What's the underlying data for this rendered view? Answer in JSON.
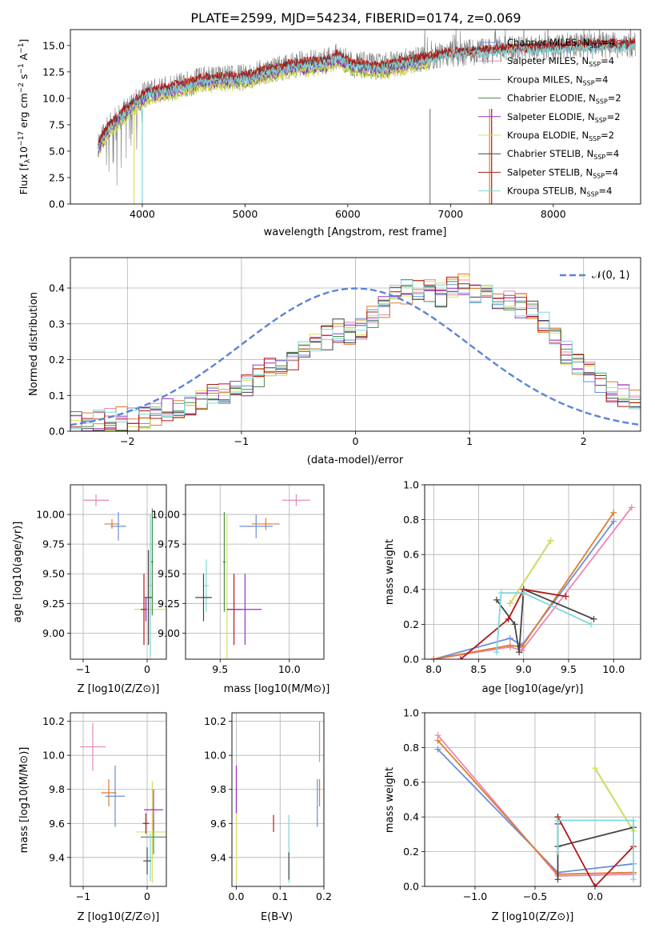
{
  "figure_title": "PLATE=2599, MJD=54234, FIBERID=0174, z=0.069",
  "colors": {
    "chabrier_miles": "#6a8fd8",
    "salpeter_miles": "#e887b8",
    "kroupa_miles": "#e07b2a",
    "chabrier_elodie": "#4a8a4a",
    "salpeter_elodie": "#9b30c8",
    "kroupa_elodie": "#d8e05a",
    "chabrier_stelib": "#454545",
    "salpeter_stelib": "#b01818",
    "kroupa_stelib": "#7ed8d8",
    "data": "#808080",
    "gaussian": "#5b84d6"
  },
  "chart_data": [
    {
      "type": "line",
      "title": "PLATE=2599, MJD=54234, FIBERID=0174, z=0.069",
      "xlabel": "wavelength [Angstrom, rest frame]",
      "ylabel": "Flux [f_λ 10^-17 erg cm^-2 s^-1 A^-1]",
      "xlim": [
        3300,
        8850
      ],
      "ylim": [
        0,
        16.5
      ],
      "xticks": [
        4000,
        5000,
        6000,
        7000,
        8000
      ],
      "yticks": [
        "0.0",
        "2.5",
        "5.0",
        "7.5",
        "10.0",
        "12.5",
        "15.0"
      ],
      "legend": {
        "position": "right",
        "entries": [
          {
            "label": "Chabrier MILES, N",
            "sub": "SSP",
            "tail": "=4",
            "color": "chabrier_miles"
          },
          {
            "label": "Salpeter MILES, N",
            "sub": "SSP",
            "tail": "=4",
            "color": "salpeter_miles"
          },
          {
            "label": "Kroupa MILES, N",
            "sub": "SSP",
            "tail": "=4",
            "color": "kroupa_miles"
          },
          {
            "label": "Chabrier ELODIE, N",
            "sub": "SSP",
            "tail": "=2",
            "color": "chabrier_elodie"
          },
          {
            "label": "Salpeter ELODIE, N",
            "sub": "SSP",
            "tail": "=2",
            "color": "salpeter_elodie"
          },
          {
            "label": "Kroupa ELODIE, N",
            "sub": "SSP",
            "tail": "=2",
            "color": "kroupa_elodie"
          },
          {
            "label": "Chabrier STELIB, N",
            "sub": "SSP",
            "tail": "=4",
            "color": "chabrier_stelib"
          },
          {
            "label": "Salpeter STELIB, N",
            "sub": "SSP",
            "tail": "=4",
            "color": "salpeter_stelib"
          },
          {
            "label": "Kroupa STELIB, N",
            "sub": "SSP",
            "tail": "=4",
            "color": "kroupa_stelib"
          }
        ]
      },
      "continuum": [
        [
          3570,
          5.5
        ],
        [
          3650,
          7.0
        ],
        [
          3800,
          8.5
        ],
        [
          3950,
          9.8
        ],
        [
          4050,
          10.5
        ],
        [
          4300,
          11.0
        ],
        [
          4600,
          11.8
        ],
        [
          5000,
          12.0
        ],
        [
          5200,
          12.6
        ],
        [
          5500,
          13.2
        ],
        [
          5800,
          13.5
        ],
        [
          5900,
          14.0
        ],
        [
          6050,
          13.2
        ],
        [
          6300,
          13.0
        ],
        [
          6600,
          13.5
        ],
        [
          7000,
          14.2
        ],
        [
          7500,
          14.6
        ],
        [
          8000,
          14.8
        ],
        [
          8500,
          15.0
        ],
        [
          8800,
          15.0
        ]
      ]
    },
    {
      "type": "line",
      "xlabel": "(data-model)/error",
      "ylabel": "Normed distribution",
      "xlim": [
        -2.5,
        2.5
      ],
      "ylim": [
        0,
        0.485
      ],
      "xticks": [
        "−2",
        "−1",
        "0",
        "1",
        "2"
      ],
      "yticks": [
        "0.0",
        "0.1",
        "0.2",
        "0.3",
        "0.4"
      ],
      "legend_label": "𝒩(0, 1)",
      "hist_edges_start": -2.5,
      "hist_bin_width": 0.1,
      "hist_base": [
        0.02,
        0.02,
        0.025,
        0.03,
        0.035,
        0.03,
        0.04,
        0.05,
        0.06,
        0.07,
        0.08,
        0.09,
        0.1,
        0.11,
        0.12,
        0.13,
        0.15,
        0.17,
        0.19,
        0.2,
        0.22,
        0.24,
        0.26,
        0.28,
        0.27,
        0.29,
        0.32,
        0.35,
        0.38,
        0.39,
        0.4,
        0.39,
        0.38,
        0.4,
        0.41,
        0.39,
        0.38,
        0.37,
        0.36,
        0.35,
        0.34,
        0.3,
        0.26,
        0.22,
        0.19,
        0.16,
        0.13,
        0.11,
        0.1,
        0.09
      ]
    },
    {
      "type": "scatter",
      "xlabel": "Z [log10(Z/Z⊙)]",
      "ylabel": "age [log10(age/yr)]",
      "xlim": [
        -1.2,
        0.3
      ],
      "ylim": [
        8.78,
        10.25
      ],
      "xticks": [
        "−1",
        "0"
      ],
      "yticks": [
        "9.00",
        "9.25",
        "9.50",
        "9.75",
        "10.00"
      ],
      "points": [
        {
          "x": -0.8,
          "y": 10.12,
          "xe": 0.2,
          "ye": 0.05,
          "c": "salpeter_miles"
        },
        {
          "x": -0.55,
          "y": 9.92,
          "xe": 0.12,
          "ye": 0.04,
          "c": "kroupa_miles"
        },
        {
          "x": -0.45,
          "y": 9.9,
          "xe": 0.12,
          "ye": 0.12,
          "c": "chabrier_miles"
        },
        {
          "x": 0.05,
          "y": 9.2,
          "xe": 0.25,
          "ye": 0.8,
          "c": "kroupa_elodie"
        },
        {
          "x": 0.08,
          "y": 9.6,
          "xe": 0.02,
          "ye": 0.45,
          "c": "chabrier_elodie"
        },
        {
          "x": 0.05,
          "y": 9.4,
          "xe": 0.02,
          "ye": 0.6,
          "c": "kroupa_stelib"
        },
        {
          "x": 0.02,
          "y": 9.3,
          "xe": 0.06,
          "ye": 0.4,
          "c": "chabrier_stelib"
        },
        {
          "x": -0.05,
          "y": 9.2,
          "xe": 0.05,
          "ye": 0.3,
          "c": "salpeter_stelib"
        },
        {
          "x": -0.02,
          "y": 9.2,
          "xe": 0.02,
          "ye": 0.1,
          "c": "salpeter_elodie"
        }
      ]
    },
    {
      "type": "scatter",
      "xlabel": "mass [log10(M/M⊙)]",
      "ylabel": "",
      "xlim": [
        9.25,
        10.25
      ],
      "ylim": [
        8.78,
        10.25
      ],
      "xticks": [
        "9.5",
        "10.0"
      ],
      "yticks": [
        "9.00",
        "9.25",
        "9.50",
        "9.75",
        "10.00"
      ],
      "points": [
        {
          "x": 10.05,
          "y": 10.12,
          "xe": 0.1,
          "ye": 0.05,
          "c": "salpeter_miles"
        },
        {
          "x": 9.83,
          "y": 9.92,
          "xe": 0.1,
          "ye": 0.05,
          "c": "kroupa_miles"
        },
        {
          "x": 9.76,
          "y": 9.9,
          "xe": 0.12,
          "ye": 0.1,
          "c": "chabrier_miles"
        },
        {
          "x": 9.55,
          "y": 9.2,
          "xe": 0.02,
          "ye": 0.8,
          "c": "kroupa_elodie"
        },
        {
          "x": 9.53,
          "y": 9.6,
          "xe": 0.01,
          "ye": 0.42,
          "c": "chabrier_elodie"
        },
        {
          "x": 9.4,
          "y": 9.4,
          "xe": 0.02,
          "ye": 0.22,
          "c": "kroupa_stelib"
        },
        {
          "x": 9.38,
          "y": 9.3,
          "xe": 0.06,
          "ye": 0.2,
          "c": "chabrier_stelib"
        },
        {
          "x": 9.6,
          "y": 9.2,
          "xe": 0.05,
          "ye": 0.3,
          "c": "salpeter_stelib"
        },
        {
          "x": 9.68,
          "y": 9.2,
          "xe": 0.12,
          "ye": 0.3,
          "c": "salpeter_elodie"
        }
      ]
    },
    {
      "type": "line",
      "xlabel": "age [log10(age/yr)]",
      "ylabel": "mass weight",
      "xlim": [
        7.9,
        10.3
      ],
      "ylim": [
        0,
        1.0
      ],
      "xticks": [
        "8.0",
        "8.5",
        "9.0",
        "9.5",
        "10.0"
      ],
      "yticks": [
        "0.0",
        "0.2",
        "0.4",
        "0.6",
        "0.8",
        "1.0"
      ],
      "series": [
        {
          "c": "chabrier_miles",
          "pts": [
            [
              8.0,
              0.0
            ],
            [
              8.85,
              0.12
            ],
            [
              8.98,
              0.08
            ],
            [
              10.0,
              0.79
            ]
          ]
        },
        {
          "c": "salpeter_miles",
          "pts": [
            [
              8.0,
              0.0
            ],
            [
              8.85,
              0.07
            ],
            [
              8.98,
              0.05
            ],
            [
              10.2,
              0.87
            ]
          ]
        },
        {
          "c": "kroupa_miles",
          "pts": [
            [
              8.0,
              0.0
            ],
            [
              8.85,
              0.08
            ],
            [
              8.98,
              0.07
            ],
            [
              10.0,
              0.84
            ]
          ]
        },
        {
          "c": "chabrier_elodie",
          "pts": [
            [
              8.85,
              0.32
            ],
            [
              9.3,
              0.68
            ]
          ]
        },
        {
          "c": "kroupa_elodie",
          "pts": [
            [
              8.85,
              0.32
            ],
            [
              9.3,
              0.68
            ]
          ]
        },
        {
          "c": "chabrier_stelib",
          "pts": [
            [
              8.7,
              0.34
            ],
            [
              8.9,
              0.2
            ],
            [
              8.95,
              0.04
            ],
            [
              9.0,
              0.4
            ],
            [
              9.78,
              0.23
            ]
          ]
        },
        {
          "c": "salpeter_stelib",
          "pts": [
            [
              8.3,
              0.0
            ],
            [
              8.83,
              0.23
            ],
            [
              9.0,
              0.4
            ],
            [
              9.47,
              0.36
            ]
          ]
        },
        {
          "c": "kroupa_stelib",
          "pts": [
            [
              8.7,
              0.04
            ],
            [
              8.75,
              0.38
            ],
            [
              9.0,
              0.38
            ],
            [
              9.75,
              0.2
            ]
          ]
        }
      ]
    },
    {
      "type": "scatter",
      "xlabel": "Z [log10(Z/Z⊙)]",
      "ylabel": "mass [log10(M/M⊙)]",
      "xlim": [
        -1.2,
        0.3
      ],
      "ylim": [
        9.23,
        10.25
      ],
      "xticks": [
        "−1",
        "0"
      ],
      "yticks": [
        "9.4",
        "9.6",
        "9.8",
        "10.0",
        "10.2"
      ],
      "points": [
        {
          "x": -0.85,
          "y": 10.05,
          "xe": 0.2,
          "ye": 0.14,
          "c": "salpeter_miles"
        },
        {
          "x": -0.6,
          "y": 9.78,
          "xe": 0.12,
          "ye": 0.08,
          "c": "kroupa_miles"
        },
        {
          "x": -0.5,
          "y": 9.76,
          "xe": 0.15,
          "ye": 0.18,
          "c": "chabrier_miles"
        },
        {
          "x": 0.08,
          "y": 9.55,
          "xe": 0.25,
          "ye": 0.3,
          "c": "kroupa_elodie"
        },
        {
          "x": 0.1,
          "y": 9.52,
          "xe": 0.2,
          "ye": 0.1,
          "c": "chabrier_elodie"
        },
        {
          "x": 0.1,
          "y": 9.68,
          "xe": 0.15,
          "ye": 0.12,
          "c": "salpeter_elodie"
        },
        {
          "x": 0.05,
          "y": 9.4,
          "xe": 0.06,
          "ye": 0.14,
          "c": "kroupa_stelib"
        },
        {
          "x": 0.0,
          "y": 9.38,
          "xe": 0.06,
          "ye": 0.08,
          "c": "chabrier_stelib"
        },
        {
          "x": -0.02,
          "y": 9.6,
          "xe": 0.05,
          "ye": 0.06,
          "c": "salpeter_stelib"
        }
      ]
    },
    {
      "type": "scatter",
      "xlabel": "E(B-V)",
      "ylabel": "",
      "xlim": [
        -0.01,
        0.2
      ],
      "ylim": [
        9.23,
        10.25
      ],
      "xticks": [
        "0.0",
        "0.1",
        "0.2"
      ],
      "yticks": [
        "9.4",
        "9.6",
        "9.8",
        "10.0",
        "10.2"
      ],
      "points": [
        {
          "x": 0.19,
          "y": 10.08,
          "xe": 0.0,
          "ye": 0.12,
          "c": "salpeter_miles"
        },
        {
          "x": 0.19,
          "y": 9.78,
          "xe": 0.0,
          "ye": 0.08,
          "c": "kroupa_miles"
        },
        {
          "x": 0.185,
          "y": 9.72,
          "xe": 0.0,
          "ye": 0.14,
          "c": "chabrier_miles"
        },
        {
          "x": 0.0,
          "y": 9.55,
          "xe": 0.0,
          "ye": 0.3,
          "c": "kroupa_elodie"
        },
        {
          "x": 0.0,
          "y": 9.8,
          "xe": 0.0,
          "ye": 0.14,
          "c": "salpeter_elodie"
        },
        {
          "x": 0.12,
          "y": 9.45,
          "xe": 0.0,
          "ye": 0.2,
          "c": "kroupa_stelib"
        },
        {
          "x": 0.12,
          "y": 9.35,
          "xe": 0.0,
          "ye": 0.08,
          "c": "chabrier_stelib"
        },
        {
          "x": 0.085,
          "y": 9.6,
          "xe": 0.0,
          "ye": 0.05,
          "c": "salpeter_stelib"
        }
      ]
    },
    {
      "type": "line",
      "xlabel": "Z [log10(Z/Z⊙)]",
      "ylabel": "mass weight",
      "xlim": [
        -1.42,
        0.38
      ],
      "ylim": [
        0,
        1.0
      ],
      "xticks": [
        "−1.0",
        "−0.5",
        "0.0"
      ],
      "yticks": [
        "0.0",
        "0.2",
        "0.4",
        "0.6",
        "0.8",
        "1.0"
      ],
      "series": [
        {
          "c": "chabrier_miles",
          "pts": [
            [
              -1.31,
              0.79
            ],
            [
              -0.31,
              0.08
            ],
            [
              0.32,
              0.13
            ]
          ]
        },
        {
          "c": "salpeter_miles",
          "pts": [
            [
              -1.31,
              0.87
            ],
            [
              -0.31,
              0.06
            ],
            [
              0.32,
              0.07
            ]
          ]
        },
        {
          "c": "kroupa_miles",
          "pts": [
            [
              -1.31,
              0.84
            ],
            [
              -0.31,
              0.07
            ],
            [
              0.32,
              0.08
            ]
          ]
        },
        {
          "c": "chabrier_elodie",
          "pts": [
            [
              0.0,
              0.68
            ],
            [
              0.32,
              0.32
            ]
          ]
        },
        {
          "c": "kroupa_elodie",
          "pts": [
            [
              0.0,
              0.68
            ],
            [
              0.32,
              0.32
            ]
          ]
        },
        {
          "c": "chabrier_stelib",
          "pts": [
            [
              -0.31,
              0.04
            ],
            [
              -0.31,
              0.4
            ],
            [
              -0.31,
              0.23
            ],
            [
              0.32,
              0.34
            ]
          ]
        },
        {
          "c": "salpeter_stelib",
          "pts": [
            [
              -0.31,
              0.36
            ],
            [
              -0.31,
              0.4
            ],
            [
              0.0,
              0.0
            ],
            [
              0.32,
              0.23
            ]
          ]
        },
        {
          "c": "kroupa_stelib",
          "pts": [
            [
              -0.31,
              0.2
            ],
            [
              -0.31,
              0.38
            ],
            [
              0.32,
              0.38
            ],
            [
              0.32,
              0.04
            ]
          ]
        }
      ]
    }
  ]
}
